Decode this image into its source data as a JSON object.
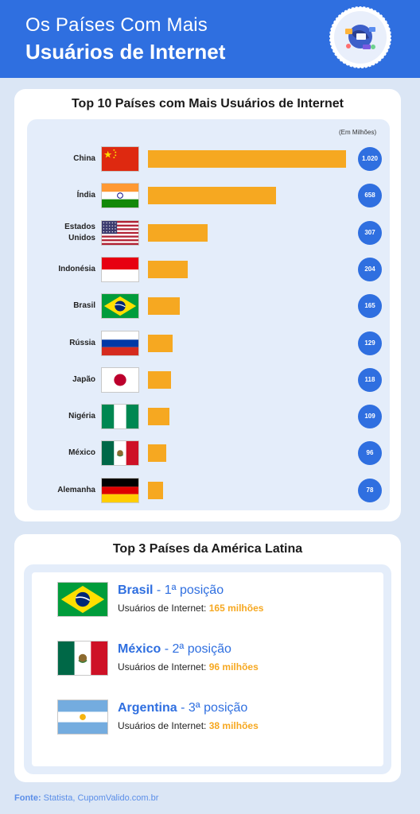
{
  "header": {
    "line1": "Os Países Com Mais",
    "line2": "Usuários de Internet"
  },
  "chart_data": {
    "type": "bar",
    "orientation": "horizontal",
    "title": "Top 10 Países com Mais Usuários de Internet",
    "unit_label": "(Em Milhões)",
    "categories": [
      "China",
      "Índia",
      "Estados Unidos",
      "Indonésia",
      "Brasil",
      "Rússia",
      "Japão",
      "Nigéria",
      "México",
      "Alemanha"
    ],
    "values": [
      1020,
      658,
      307,
      204,
      165,
      129,
      118,
      109,
      96,
      78
    ],
    "value_labels": [
      "1.020",
      "658",
      "307",
      "204",
      "165",
      "129",
      "118",
      "109",
      "96",
      "78"
    ],
    "colors": {
      "bar": "#f6a821",
      "badge": "#2f6fe0"
    }
  },
  "latam": {
    "title": "Top 3 Países da América Latina",
    "items": [
      {
        "country": "Brasil",
        "position": " - 1ª posição",
        "sub_label": "Usuários de Internet: ",
        "value": "165 milhões"
      },
      {
        "country": "México",
        "position": " - 2ª posição",
        "sub_label": "Usuários de Internet: ",
        "value": "96 milhões"
      },
      {
        "country": "Argentina",
        "position": " - 3ª posição",
        "sub_label": "Usuários de Internet: ",
        "value": "38 milhões"
      }
    ]
  },
  "source": {
    "label": "Fonte:",
    "text": " Statista, CupomValido.com.br"
  }
}
